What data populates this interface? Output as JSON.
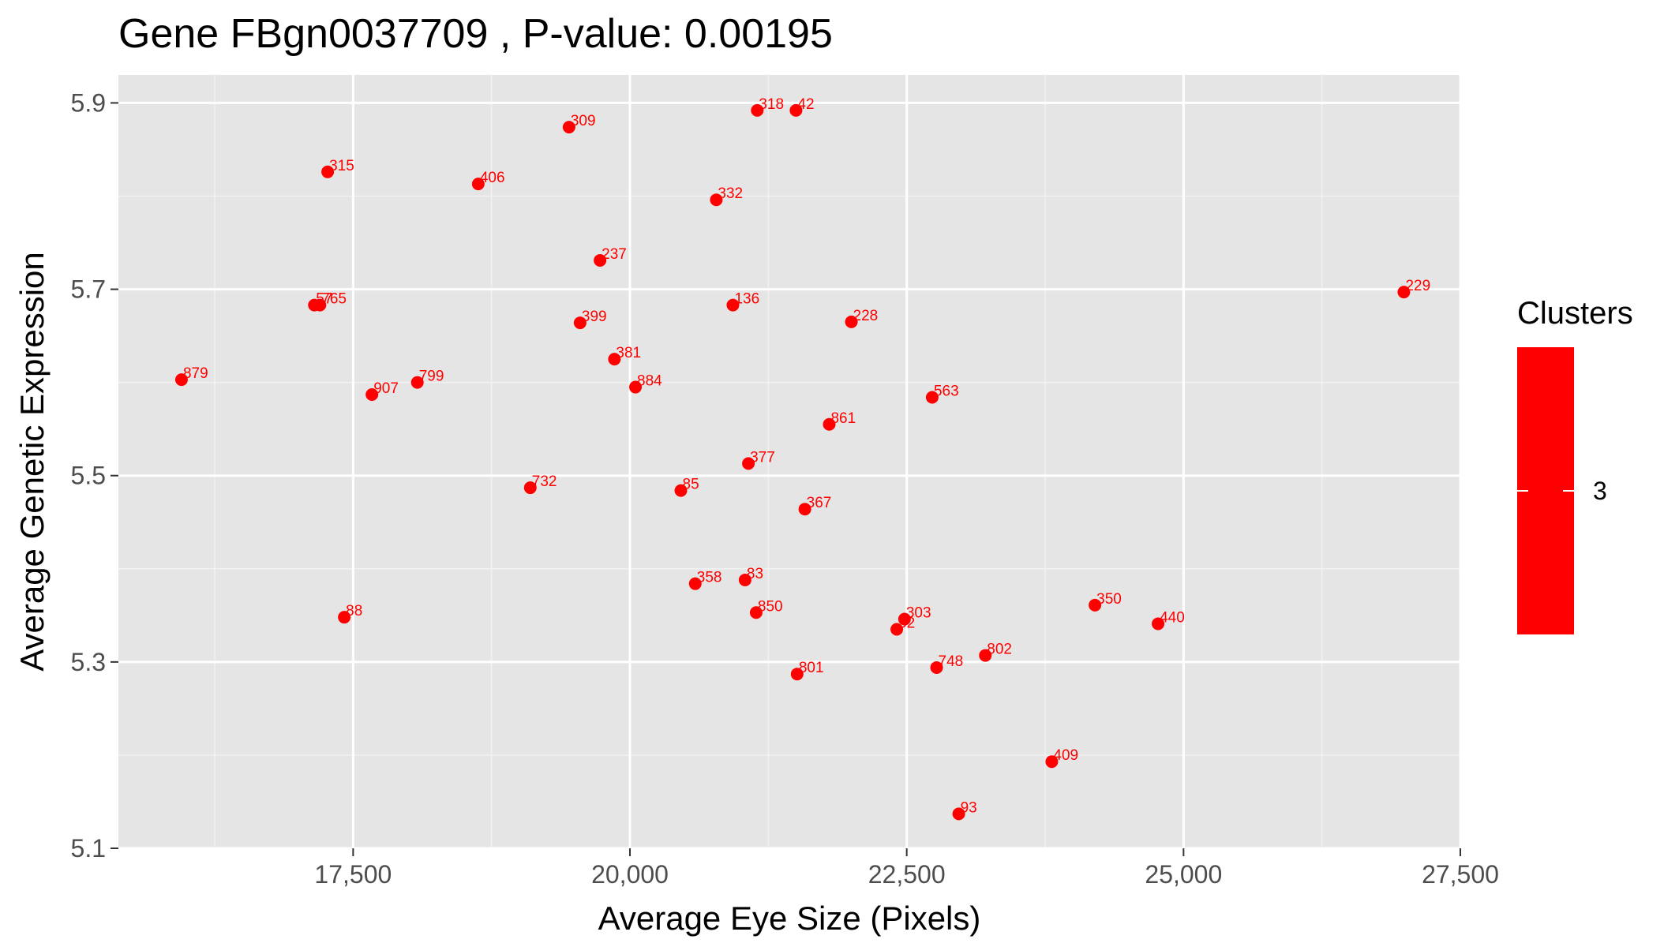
{
  "chart_data": {
    "type": "scatter",
    "title": "Gene FBgn0037709 , P-value: 0.00195",
    "xlabel": "Average Eye Size (Pixels)",
    "ylabel": "Average Genetic Expression",
    "xlim": [
      15380,
      27500
    ],
    "ylim": [
      5.1,
      5.93
    ],
    "x_ticks": [
      17500,
      20000,
      22500,
      25000,
      27500
    ],
    "x_tick_labels": [
      "17,500",
      "20,000",
      "22,500",
      "25,000",
      "27,500"
    ],
    "y_ticks": [
      5.1,
      5.3,
      5.5,
      5.7,
      5.9
    ],
    "y_tick_labels": [
      "5.1",
      "5.3",
      "5.5",
      "5.7",
      "5.9"
    ],
    "x_minor_ticks": [
      16250,
      18750,
      21250,
      23750,
      26250
    ],
    "y_minor_ticks": [
      5.2,
      5.4,
      5.6,
      5.8
    ],
    "grid": true,
    "panel_background": "#e5e5e5",
    "point_color": "#ff0000",
    "legend": {
      "title": "Clusters",
      "label": "3",
      "color": "#ff0000",
      "position": "right"
    },
    "points": [
      {
        "label": "879",
        "x": 15950,
        "y": 5.603
      },
      {
        "label": "57",
        "x": 17150,
        "y": 5.683
      },
      {
        "label": "765",
        "x": 17200,
        "y": 5.683
      },
      {
        "label": "315",
        "x": 17270,
        "y": 5.826
      },
      {
        "label": "88",
        "x": 17420,
        "y": 5.348
      },
      {
        "label": "907",
        "x": 17670,
        "y": 5.587
      },
      {
        "label": "799",
        "x": 18080,
        "y": 5.6
      },
      {
        "label": "406",
        "x": 18630,
        "y": 5.813
      },
      {
        "label": "732",
        "x": 19100,
        "y": 5.487
      },
      {
        "label": "309",
        "x": 19450,
        "y": 5.874
      },
      {
        "label": "399",
        "x": 19550,
        "y": 5.664
      },
      {
        "label": "237",
        "x": 19730,
        "y": 5.731
      },
      {
        "label": "381",
        "x": 19860,
        "y": 5.625
      },
      {
        "label": "884",
        "x": 20050,
        "y": 5.595
      },
      {
        "label": "85",
        "x": 20460,
        "y": 5.484
      },
      {
        "label": "358",
        "x": 20590,
        "y": 5.384
      },
      {
        "label": "332",
        "x": 20780,
        "y": 5.796
      },
      {
        "label": "136",
        "x": 20930,
        "y": 5.683
      },
      {
        "label": "83",
        "x": 21040,
        "y": 5.388
      },
      {
        "label": "377",
        "x": 21070,
        "y": 5.513
      },
      {
        "label": "850",
        "x": 21140,
        "y": 5.353
      },
      {
        "label": "318",
        "x": 21150,
        "y": 5.892
      },
      {
        "label": "42",
        "x": 21500,
        "y": 5.892
      },
      {
        "label": "801",
        "x": 21510,
        "y": 5.287
      },
      {
        "label": "367",
        "x": 21580,
        "y": 5.464
      },
      {
        "label": "861",
        "x": 21800,
        "y": 5.555
      },
      {
        "label": "228",
        "x": 22000,
        "y": 5.665
      },
      {
        "label": "52",
        "x": 22410,
        "y": 5.335
      },
      {
        "label": "303",
        "x": 22480,
        "y": 5.346
      },
      {
        "label": "563",
        "x": 22730,
        "y": 5.584
      },
      {
        "label": "748",
        "x": 22770,
        "y": 5.294
      },
      {
        "label": "93",
        "x": 22970,
        "y": 5.137
      },
      {
        "label": "802",
        "x": 23210,
        "y": 5.307
      },
      {
        "label": "409",
        "x": 23810,
        "y": 5.193
      },
      {
        "label": "350",
        "x": 24200,
        "y": 5.361
      },
      {
        "label": "440",
        "x": 24770,
        "y": 5.341
      },
      {
        "label": "229",
        "x": 26990,
        "y": 5.697
      }
    ]
  }
}
